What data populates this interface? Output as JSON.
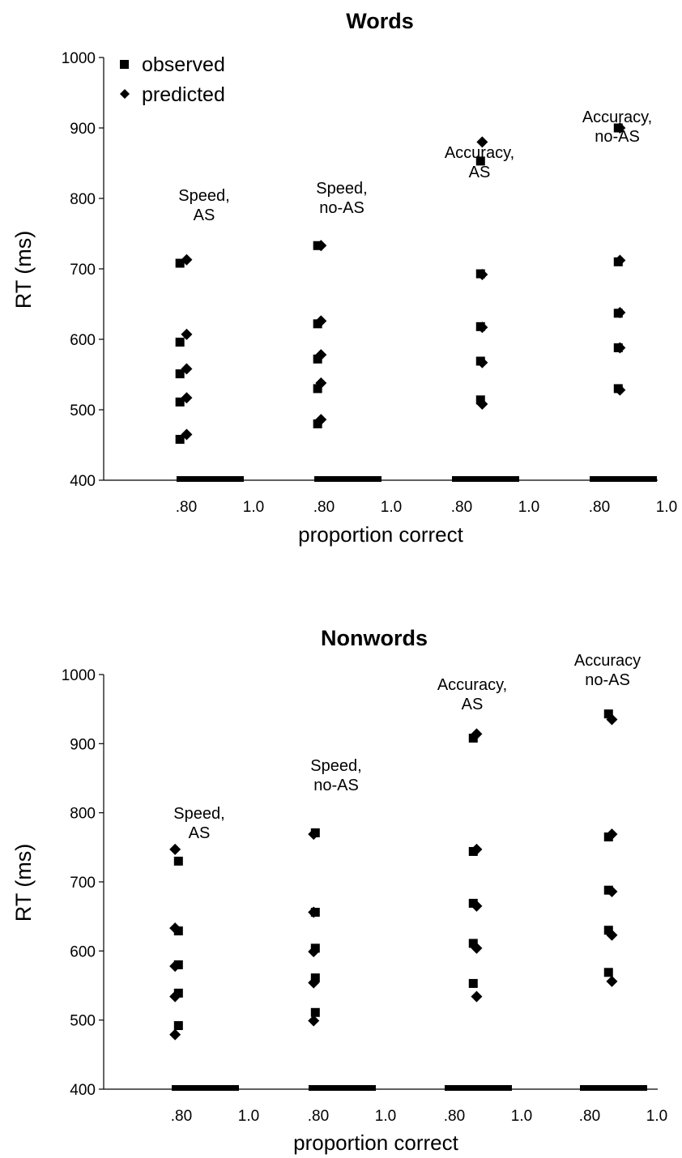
{
  "chart_data": [
    {
      "type": "scatter",
      "title": "Words",
      "ylabel": "RT (ms)",
      "xlabel": "proportion correct",
      "ylim": [
        400,
        1000
      ],
      "yticks": [
        "400",
        "500",
        "600",
        "700",
        "800",
        "900",
        "1000"
      ],
      "xtick_labels": [
        ".80",
        "1.0",
        ".80",
        "1.0",
        ".80",
        "1.0",
        ".80",
        "1.0"
      ],
      "legend": {
        "position": "top-left",
        "entries": [
          "observed",
          "predicted"
        ]
      },
      "panels": [
        {
          "label": [
            "Speed,",
            "AS"
          ],
          "observed": [
            {
              "x": 0.81,
              "y": [
                458,
                511,
                551,
                596,
                708
              ]
            }
          ],
          "predicted": [
            {
              "x": 0.83,
              "y": [
                465,
                517,
                558,
                607,
                713
              ]
            }
          ]
        },
        {
          "label": [
            "Speed,",
            "no-AS"
          ],
          "observed": [
            {
              "x": 0.81,
              "y": [
                480,
                530,
                572,
                622,
                733
              ]
            }
          ],
          "predicted": [
            {
              "x": 0.82,
              "y": [
                486,
                538,
                578,
                626,
                733
              ]
            }
          ]
        },
        {
          "label": [
            "Accuracy,",
            "AS"
          ],
          "observed": [
            {
              "x": 0.885,
              "y": [
                514,
                569,
                618,
                693,
                853
              ]
            }
          ],
          "predicted": [
            {
              "x": 0.89,
              "y": [
                508,
                567,
                617,
                692,
                880
              ]
            }
          ]
        },
        {
          "label": [
            "Accuracy,",
            "no-AS"
          ],
          "observed": [
            {
              "x": 0.885,
              "y": [
                530,
                588,
                637,
                710,
                900
              ]
            }
          ],
          "predicted": [
            {
              "x": 0.89,
              "y": [
                528,
                588,
                638,
                712,
                900
              ]
            }
          ]
        }
      ]
    },
    {
      "type": "scatter",
      "title": "Nonwords",
      "ylabel": "RT (ms)",
      "xlabel": "proportion correct",
      "ylim": [
        400,
        1000
      ],
      "yticks": [
        "400",
        "500",
        "600",
        "700",
        "800",
        "900",
        "1000"
      ],
      "xtick_labels": [
        ".80",
        "1.0",
        ".80",
        "1.0",
        ".80",
        "1.0",
        ".80",
        "1.0"
      ],
      "panels": [
        {
          "label": [
            "Speed,",
            "AS"
          ],
          "observed": [
            {
              "x": 0.82,
              "y": [
                492,
                539,
                580,
                629,
                730
              ]
            }
          ],
          "predicted": [
            {
              "x": 0.81,
              "y": [
                479,
                534,
                578,
                633,
                747
              ]
            }
          ]
        },
        {
          "label": [
            "Speed,",
            "no-AS"
          ],
          "observed": [
            {
              "x": 0.82,
              "y": [
                511,
                561,
                604,
                656,
                771
              ]
            }
          ],
          "predicted": [
            {
              "x": 0.815,
              "y": [
                499,
                554,
                599,
                656,
                769
              ]
            }
          ]
        },
        {
          "label": [
            "Accuracy,",
            "AS"
          ],
          "observed": [
            {
              "x": 0.885,
              "y": [
                553,
                611,
                669,
                744,
                908
              ]
            }
          ],
          "predicted": [
            {
              "x": 0.895,
              "y": [
                534,
                604,
                665,
                747,
                914
              ]
            }
          ]
        },
        {
          "label": [
            "Accuracy",
            "no-AS"
          ],
          "observed": [
            {
              "x": 0.885,
              "y": [
                569,
                630,
                688,
                765,
                943
              ]
            }
          ],
          "predicted": [
            {
              "x": 0.895,
              "y": [
                556,
                623,
                686,
                769,
                935
              ]
            }
          ]
        }
      ]
    }
  ]
}
